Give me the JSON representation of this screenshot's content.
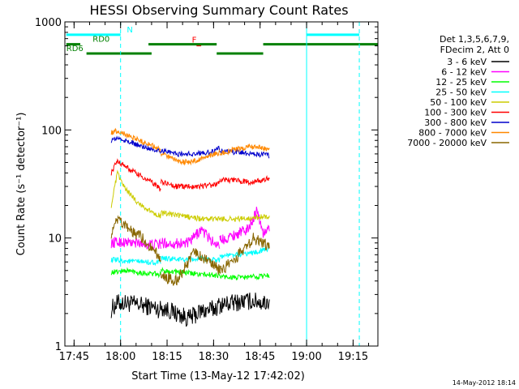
{
  "chart_data": {
    "type": "line",
    "title": "HESSI Observing Summary Count Rates",
    "xlabel": "Start Time (13-May-12 17:42:02)",
    "ylabel": "Count Rate (s⁻¹ detector⁻¹)",
    "y_scale": "log",
    "ylim": [
      1,
      1000
    ],
    "xlim": [
      "17:42:02",
      "19:23:00"
    ],
    "x_ticks": [
      "17:45",
      "18:00",
      "18:15",
      "18:30",
      "18:45",
      "19:00",
      "19:15"
    ],
    "y_ticks": [
      "1",
      "10",
      "100",
      "1000"
    ],
    "footer_date": "14-May-2012 18:14",
    "legend": {
      "header": [
        "Det 1,3,5,6,7,9,",
        "FDecim 2, Att 0"
      ],
      "placement": "right"
    },
    "series": [
      {
        "name": "3 - 6 keV",
        "color": "#000000",
        "segments": [
          {
            "x": [
              "17:57",
              "17:59",
              "18:02",
              "18:06",
              "18:10",
              "18:12",
              "18:13"
            ],
            "y": [
              2.2,
              2.5,
              2.5,
              2.4,
              2.3,
              2.2,
              2.2
            ]
          },
          {
            "x": [
              "18:13",
              "18:18",
              "18:22",
              "18:26",
              "18:30",
              "18:32"
            ],
            "y": [
              2.3,
              2.0,
              1.8,
              2.1,
              2.2,
              2.4
            ]
          },
          {
            "x": [
              "18:32",
              "18:36",
              "18:40",
              "18:44",
              "18:46",
              "18:48"
            ],
            "y": [
              2.4,
              2.5,
              2.6,
              2.6,
              2.5,
              2.6
            ]
          }
        ]
      },
      {
        "name": "6 - 12 keV",
        "color": "#ff00ff",
        "segments": [
          {
            "x": [
              "17:57",
              "18:00",
              "18:04",
              "18:08",
              "18:13"
            ],
            "y": [
              9.0,
              9.2,
              9.0,
              8.8,
              8.7
            ]
          },
          {
            "x": [
              "18:13",
              "18:16",
              "18:22",
              "18:26",
              "18:30",
              "18:32"
            ],
            "y": [
              9.0,
              8.9,
              9.0,
              12.0,
              9.0,
              8.8
            ]
          },
          {
            "x": [
              "18:32",
              "18:36",
              "18:41",
              "18:44",
              "18:46",
              "18:48"
            ],
            "y": [
              9.5,
              10.5,
              12.0,
              18.0,
              11.0,
              12.0
            ]
          }
        ]
      },
      {
        "name": "12 - 25 keV",
        "color": "#00ff00",
        "segments": [
          {
            "x": [
              "17:57",
              "18:02",
              "18:08",
              "18:13"
            ],
            "y": [
              4.8,
              5.0,
              4.7,
              4.6
            ]
          },
          {
            "x": [
              "18:13",
              "18:20",
              "18:26",
              "18:32"
            ],
            "y": [
              5.0,
              4.8,
              4.6,
              4.5
            ]
          },
          {
            "x": [
              "18:32",
              "18:38",
              "18:44",
              "18:48"
            ],
            "y": [
              4.4,
              4.3,
              4.4,
              4.5
            ]
          }
        ]
      },
      {
        "name": "25 - 50 keV",
        "color": "#00ffff",
        "segments": [
          {
            "x": [
              "17:57",
              "18:02",
              "18:08",
              "18:13"
            ],
            "y": [
              6.3,
              6.1,
              6.0,
              5.9
            ]
          },
          {
            "x": [
              "18:13",
              "18:20",
              "18:26",
              "18:32"
            ],
            "y": [
              6.5,
              6.3,
              6.4,
              6.3
            ]
          },
          {
            "x": [
              "18:32",
              "18:38",
              "18:44",
              "18:48"
            ],
            "y": [
              6.8,
              7.0,
              7.4,
              8.0
            ]
          }
        ]
      },
      {
        "name": "50 - 100 keV",
        "color": "#cccc00",
        "segments": [
          {
            "x": [
              "17:57",
              "17:59",
              "18:01",
              "18:05",
              "18:09",
              "18:13"
            ],
            "y": [
              20,
              40,
              30,
              22,
              18,
              16
            ]
          },
          {
            "x": [
              "18:13",
              "18:20",
              "18:26",
              "18:32"
            ],
            "y": [
              17,
              16,
              15,
              15
            ]
          },
          {
            "x": [
              "18:32",
              "18:38",
              "18:44",
              "18:48"
            ],
            "y": [
              15,
              15,
              15.5,
              16
            ]
          }
        ]
      },
      {
        "name": "100 - 300 keV",
        "color": "#ff0000",
        "segments": [
          {
            "x": [
              "17:57",
              "17:59",
              "18:02",
              "18:06",
              "18:10",
              "18:13"
            ],
            "y": [
              40,
              52,
              45,
              38,
              33,
              28
            ]
          },
          {
            "x": [
              "18:13",
              "18:18",
              "18:24",
              "18:30",
              "18:32"
            ],
            "y": [
              33,
              30,
              30,
              31,
              32
            ]
          },
          {
            "x": [
              "18:32",
              "18:37",
              "18:42",
              "18:46",
              "18:48"
            ],
            "y": [
              35,
              34,
              33,
              34,
              36
            ]
          }
        ]
      },
      {
        "name": "300 - 800 keV",
        "color": "#0000cc",
        "segments": [
          {
            "x": [
              "17:57",
              "17:59",
              "18:03",
              "18:07",
              "18:10",
              "18:13"
            ],
            "y": [
              80,
              84,
              77,
              70,
              67,
              64
            ]
          },
          {
            "x": [
              "18:13",
              "18:18",
              "18:24",
              "18:30",
              "18:32"
            ],
            "y": [
              65,
              60,
              60,
              63,
              68
            ]
          },
          {
            "x": [
              "18:32",
              "18:38",
              "18:44",
              "18:48"
            ],
            "y": [
              64,
              62,
              60,
              58
            ]
          }
        ]
      },
      {
        "name": "800 - 7000 keV",
        "color": "#ff8800",
        "segments": [
          {
            "x": [
              "17:57",
              "17:59",
              "18:03",
              "18:07",
              "18:10",
              "18:13"
            ],
            "y": [
              95,
              98,
              88,
              78,
              72,
              65
            ]
          },
          {
            "x": [
              "18:13",
              "18:18",
              "18:22",
              "18:27",
              "18:32"
            ],
            "y": [
              60,
              52,
              50,
              55,
              62
            ]
          },
          {
            "x": [
              "18:32",
              "18:37",
              "18:42",
              "18:46",
              "18:48"
            ],
            "y": [
              60,
              66,
              70,
              68,
              66
            ]
          }
        ]
      },
      {
        "name": "7000 - 20000 keV",
        "color": "#886600",
        "segments": [
          {
            "x": [
              "17:57",
              "17:59",
              "18:02",
              "18:07",
              "18:10",
              "18:13"
            ],
            "y": [
              11,
              14.5,
              12.5,
              10,
              8,
              6.5
            ]
          },
          {
            "x": [
              "18:13",
              "18:18",
              "18:21",
              "18:24",
              "18:28",
              "18:32"
            ],
            "y": [
              4.5,
              4.0,
              5.5,
              7.5,
              6.0,
              5.0
            ]
          },
          {
            "x": [
              "18:32",
              "18:36",
              "18:40",
              "18:43",
              "18:46",
              "18:48"
            ],
            "y": [
              5.0,
              6.0,
              8.0,
              10.0,
              9.0,
              8.0
            ]
          }
        ]
      }
    ],
    "status_bars": [
      {
        "label": "N",
        "color": "#00ffff",
        "y": 760,
        "label_x": "18:02",
        "segments": [
          [
            "17:42:30",
            "18:00"
          ],
          [
            "19:00",
            "19:17"
          ]
        ]
      },
      {
        "label": "F",
        "color": "#ff0000",
        "y": 610,
        "label_x": "18:23",
        "segments": [
          [
            "18:24:30",
            "18:26"
          ]
        ]
      },
      {
        "label": "RD0",
        "color": "#008000",
        "y": 620,
        "label_x": "17:51",
        "segments": [
          [
            "17:42:30",
            "17:47"
          ],
          [
            "18:09",
            "18:31"
          ],
          [
            "18:46",
            "19:23"
          ]
        ]
      },
      {
        "label": "RD6",
        "color": "#008000",
        "y": 510,
        "label_x": "17:42:30",
        "segments": [
          [
            "17:49",
            "18:10"
          ],
          [
            "18:31",
            "18:46"
          ]
        ]
      }
    ],
    "vertical_lines": [
      {
        "x": "18:00",
        "color": "#00ffff",
        "style": "dashed"
      },
      {
        "x": "19:00",
        "color": "#00ffff",
        "style": "solid"
      },
      {
        "x": "19:17",
        "color": "#00ffff",
        "style": "dashed"
      }
    ],
    "grid": false
  }
}
